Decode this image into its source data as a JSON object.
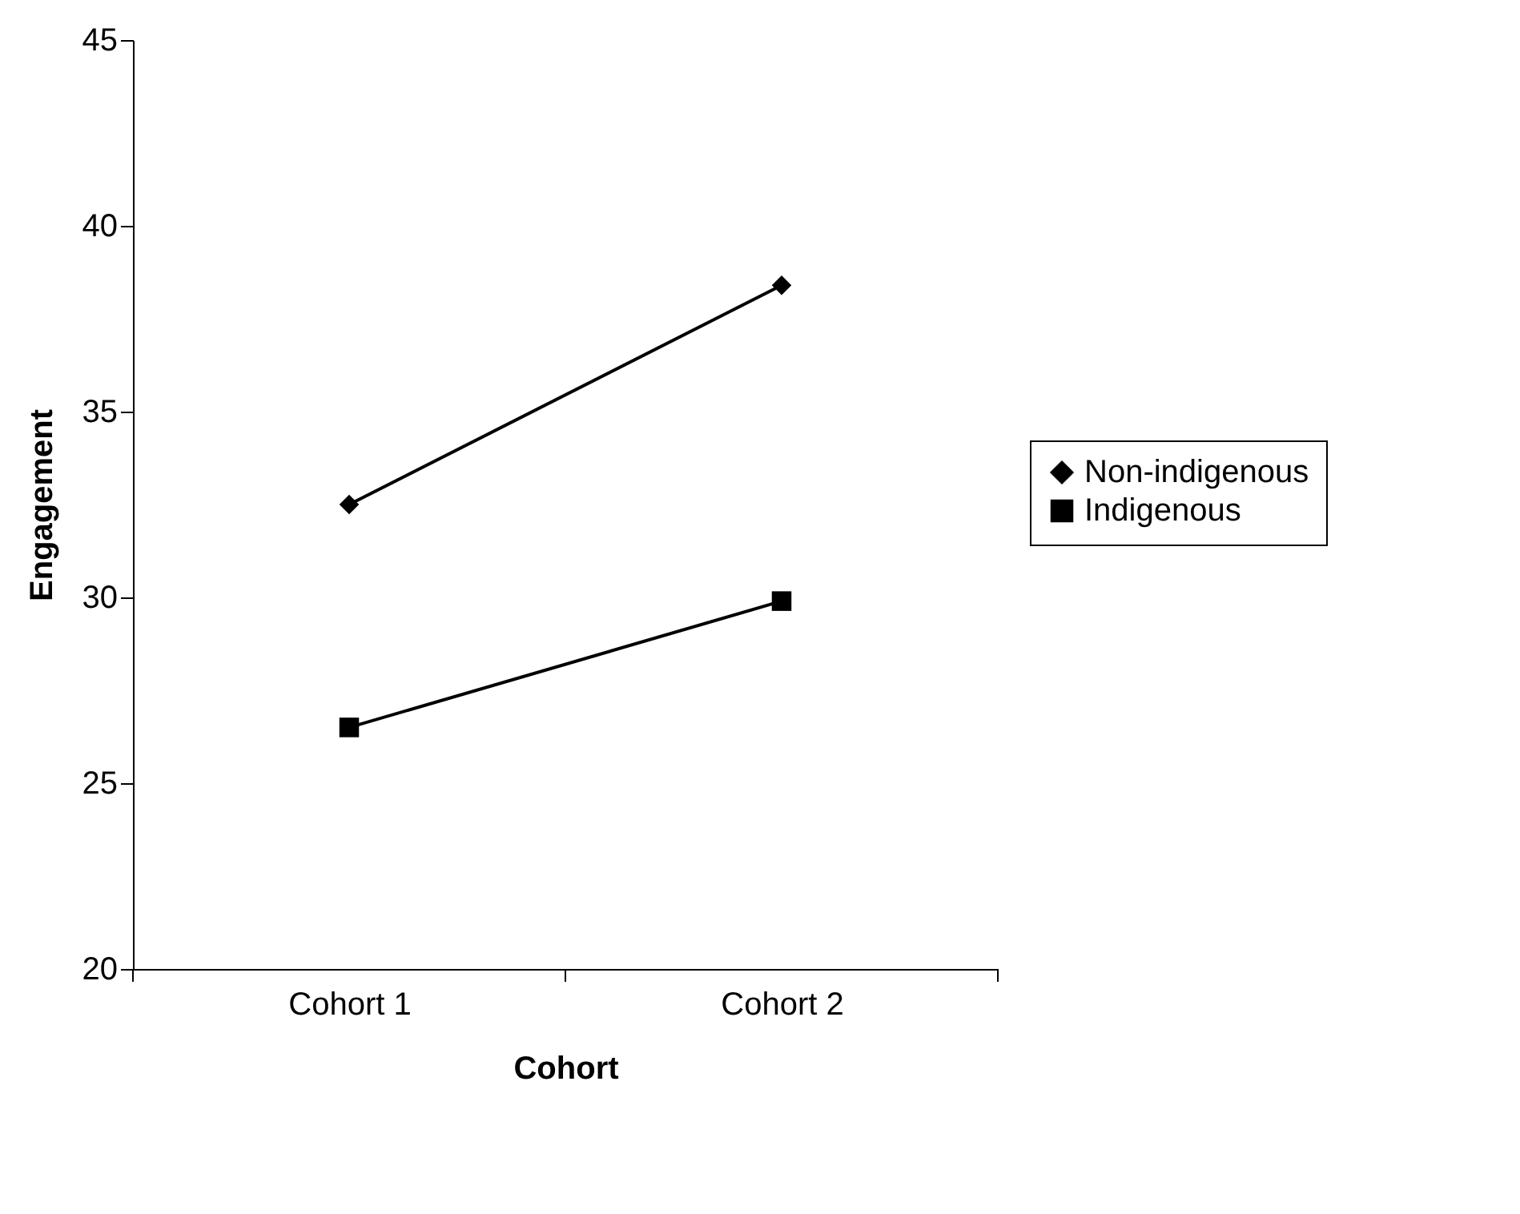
{
  "chart_data": {
    "type": "line",
    "xlabel": "Cohort",
    "ylabel": "Engagement",
    "categories": [
      "Cohort 1",
      "Cohort 2"
    ],
    "series": [
      {
        "name": "Non-indigenous",
        "color": "#000000",
        "values": [
          32.5,
          38.4
        ],
        "marker": "diamond"
      },
      {
        "name": "Indigenous",
        "color": "#000000",
        "values": [
          26.5,
          29.9
        ],
        "marker": "square"
      }
    ],
    "ylim": [
      20,
      45
    ],
    "yticks": [
      20,
      25,
      30,
      35,
      40,
      45
    ],
    "grid": false,
    "legend": "right",
    "line_style": "solid"
  }
}
